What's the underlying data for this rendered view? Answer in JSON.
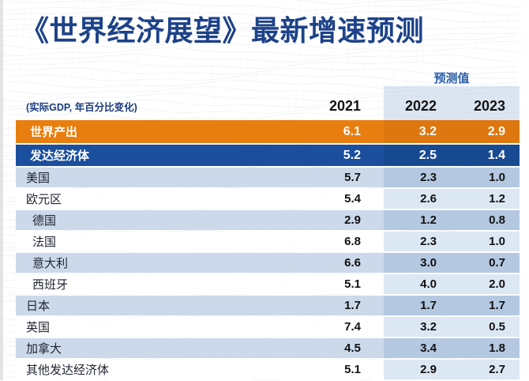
{
  "title": "《世界经济展望》最新增速预测",
  "subtitle": "(实际GDP, 年百分比变化)",
  "forecast_label": "预测值",
  "columns": [
    "2021",
    "2022",
    "2023"
  ],
  "rows": [
    {
      "label": "世界产出",
      "values": [
        "6.1",
        "3.2",
        "2.9"
      ],
      "style": "world",
      "indent": false
    },
    {
      "label": "发达经济体",
      "values": [
        "5.2",
        "2.5",
        "1.4"
      ],
      "style": "group",
      "indent": false
    },
    {
      "label": "美国",
      "values": [
        "5.7",
        "2.3",
        "1.0"
      ],
      "style": "stripe",
      "indent": false
    },
    {
      "label": "欧元区",
      "values": [
        "5.4",
        "2.6",
        "1.2"
      ],
      "style": "plain",
      "indent": false
    },
    {
      "label": "德国",
      "values": [
        "2.9",
        "1.2",
        "0.8"
      ],
      "style": "stripe",
      "indent": true
    },
    {
      "label": "法国",
      "values": [
        "6.8",
        "2.3",
        "1.0"
      ],
      "style": "plain",
      "indent": true
    },
    {
      "label": "意大利",
      "values": [
        "6.6",
        "3.0",
        "0.7"
      ],
      "style": "stripe",
      "indent": true
    },
    {
      "label": "西班牙",
      "values": [
        "5.1",
        "4.0",
        "2.0"
      ],
      "style": "plain",
      "indent": true
    },
    {
      "label": "日本",
      "values": [
        "1.7",
        "1.7",
        "1.7"
      ],
      "style": "stripe",
      "indent": false
    },
    {
      "label": "英国",
      "values": [
        "7.4",
        "3.2",
        "0.5"
      ],
      "style": "plain",
      "indent": false
    },
    {
      "label": "加拿大",
      "values": [
        "4.5",
        "3.4",
        "1.8"
      ],
      "style": "stripe",
      "indent": false
    },
    {
      "label": "其他发达经济体",
      "values": [
        "5.1",
        "2.9",
        "2.7"
      ],
      "style": "plain",
      "indent": false
    }
  ],
  "colors": {
    "title_navy": "#1d4289",
    "forecast_blue": "#2a5da9",
    "world_orange": "#e87e10",
    "advanced_blue": "#1b4f9e",
    "stripe_blue": "#cbd9eb",
    "stripe_band_blue": "#b4c8e1",
    "white_band_blue": "#dce7f4",
    "header_band_blue": "#dbe4f1"
  },
  "chart_data": {
    "type": "table",
    "title": "《世界经济展望》最新增速预测",
    "subtitle": "(实际GDP, 年百分比变化)",
    "forecast_columns_note": "预测值 applies to 2022 and 2023",
    "columns": [
      "2021",
      "2022",
      "2023"
    ],
    "rows": [
      {
        "label": "世界产出",
        "values": [
          6.1,
          3.2,
          2.9
        ]
      },
      {
        "label": "发达经济体",
        "values": [
          5.2,
          2.5,
          1.4
        ]
      },
      {
        "label": "美国",
        "values": [
          5.7,
          2.3,
          1.0
        ]
      },
      {
        "label": "欧元区",
        "values": [
          5.4,
          2.6,
          1.2
        ]
      },
      {
        "label": "德国",
        "values": [
          2.9,
          1.2,
          0.8
        ]
      },
      {
        "label": "法国",
        "values": [
          6.8,
          2.3,
          1.0
        ]
      },
      {
        "label": "意大利",
        "values": [
          6.6,
          3.0,
          0.7
        ]
      },
      {
        "label": "西班牙",
        "values": [
          5.1,
          4.0,
          2.0
        ]
      },
      {
        "label": "日本",
        "values": [
          1.7,
          1.7,
          1.7
        ]
      },
      {
        "label": "英国",
        "values": [
          7.4,
          3.2,
          0.5
        ]
      },
      {
        "label": "加拿大",
        "values": [
          4.5,
          3.4,
          1.8
        ]
      },
      {
        "label": "其他发达经济体",
        "values": [
          5.1,
          2.9,
          2.7
        ]
      }
    ]
  }
}
